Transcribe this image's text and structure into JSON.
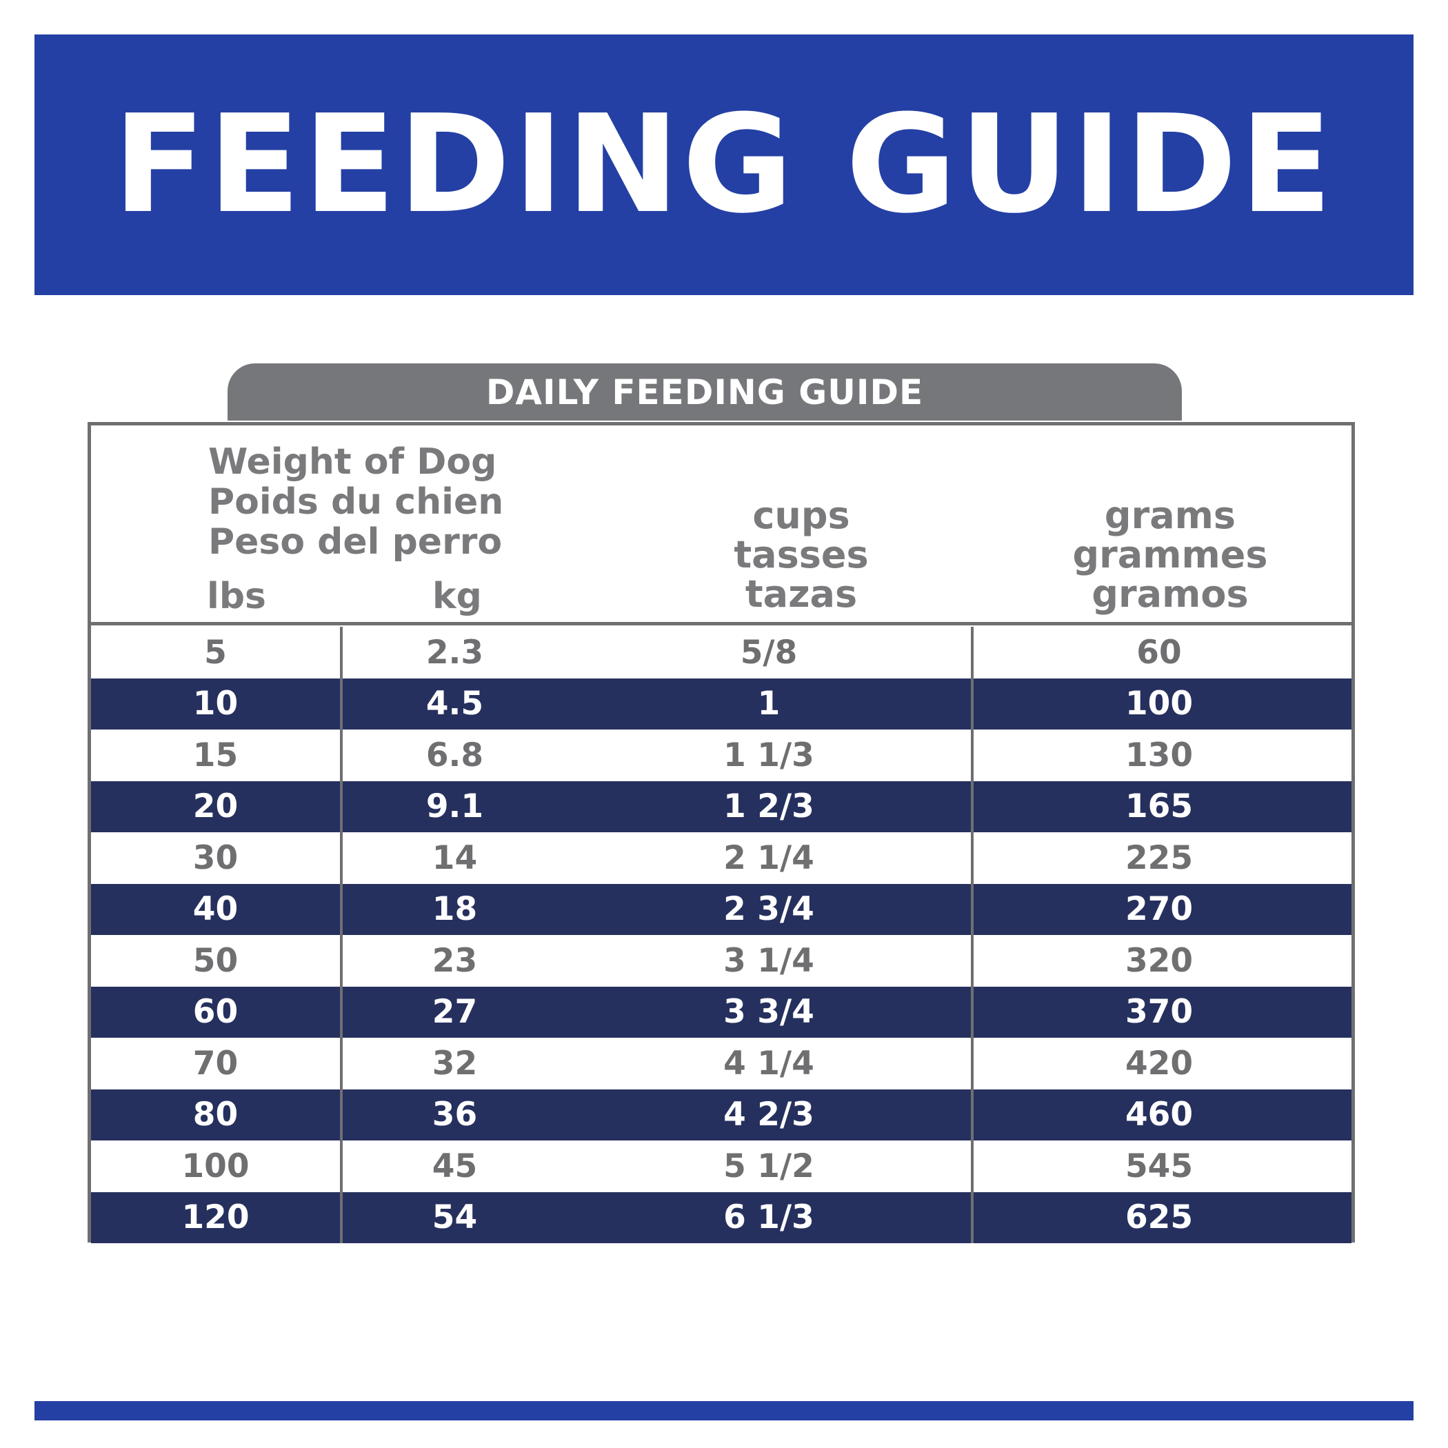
{
  "banner": {
    "title": "FEEDING GUIDE"
  },
  "tab": {
    "label": "DAILY FEEDING GUIDE"
  },
  "header": {
    "weight": [
      "Weight of Dog",
      "Poids du chien",
      "Peso del perro"
    ],
    "lbs": "lbs",
    "kg": "kg",
    "cups": [
      "cups",
      "tasses",
      "tazas"
    ],
    "grams": [
      "grams",
      "grammes",
      "gramos"
    ]
  },
  "rows": [
    {
      "lbs": "5",
      "kg": "2.3",
      "cups": "5/8",
      "grams": "60"
    },
    {
      "lbs": "10",
      "kg": "4.5",
      "cups": "1",
      "grams": "100"
    },
    {
      "lbs": "15",
      "kg": "6.8",
      "cups": "1 1/3",
      "grams": "130"
    },
    {
      "lbs": "20",
      "kg": "9.1",
      "cups": "1 2/3",
      "grams": "165"
    },
    {
      "lbs": "30",
      "kg": "14",
      "cups": "2 1/4",
      "grams": "225"
    },
    {
      "lbs": "40",
      "kg": "18",
      "cups": "2 3/4",
      "grams": "270"
    },
    {
      "lbs": "50",
      "kg": "23",
      "cups": "3 1/4",
      "grams": "320"
    },
    {
      "lbs": "60",
      "kg": "27",
      "cups": "3 3/4",
      "grams": "370"
    },
    {
      "lbs": "70",
      "kg": "32",
      "cups": "4 1/4",
      "grams": "420"
    },
    {
      "lbs": "80",
      "kg": "36",
      "cups": "4 2/3",
      "grams": "460"
    },
    {
      "lbs": "100",
      "kg": "45",
      "cups": "5 1/2",
      "grams": "545"
    },
    {
      "lbs": "120",
      "kg": "54",
      "cups": "6 1/3",
      "grams": "625"
    }
  ],
  "colors": {
    "banner": "#2440a4",
    "dark_row": "#26305e",
    "tab": "#76777a",
    "text_gray": "#7a7a7d"
  }
}
